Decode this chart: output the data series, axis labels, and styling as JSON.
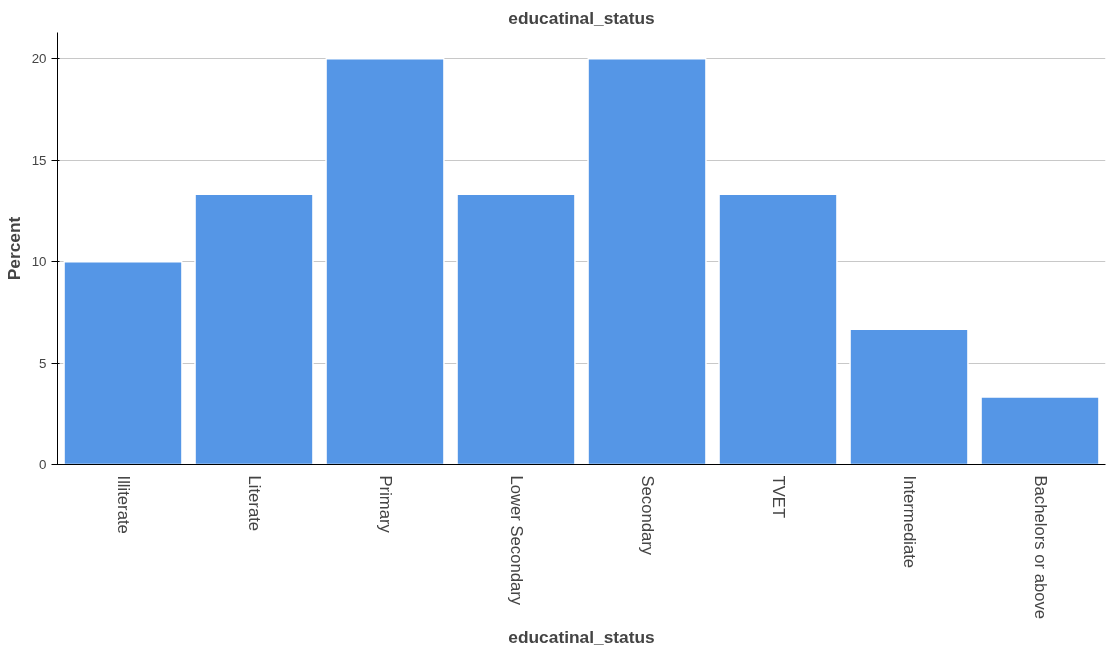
{
  "chart_data": {
    "type": "bar",
    "title": "educatinal_status",
    "xlabel": "educatinal_status",
    "ylabel": "Percent",
    "categories": [
      "Illiterate",
      "Literate",
      "Primary",
      "Lower Secondary",
      "Secondary",
      "TVET",
      "Intermediate",
      "Bachelors or above"
    ],
    "values": [
      10,
      13.33,
      20,
      13.33,
      20,
      13.33,
      6.67,
      3.33
    ],
    "color": "#5596e6",
    "ylim": [
      0,
      21.3
    ],
    "yticks": [
      0,
      5,
      10,
      15,
      20
    ],
    "grid": "y"
  }
}
